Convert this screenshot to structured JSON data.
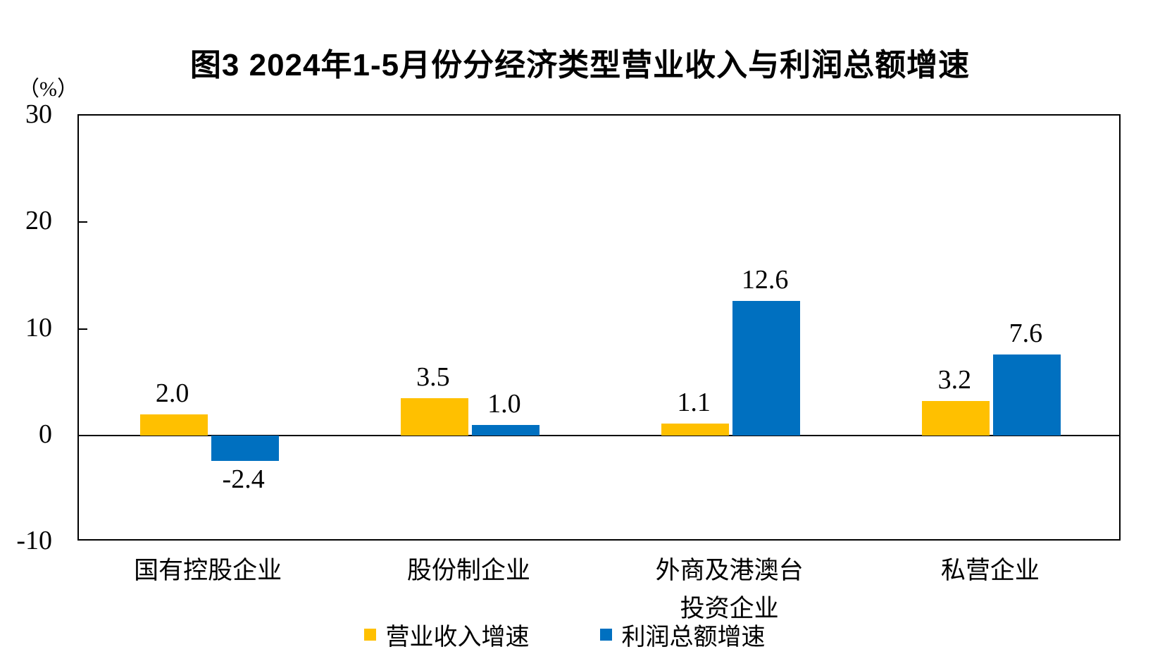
{
  "chart": {
    "title": "图3 2024年1-5月份分经济类型营业收入与利润总额增速",
    "unit_label": "（%）"
  },
  "chart_data": {
    "type": "bar",
    "title": "图3 2024年1-5月份分经济类型营业收入与利润总额增速",
    "unit": "%",
    "categories": [
      "国有控股企业",
      "股份制企业",
      "外商及港澳台\n投资企业",
      "私营企业"
    ],
    "series": [
      {
        "name": "营业收入增速",
        "color": "#FFC000",
        "values": [
          2.0,
          3.5,
          1.1,
          3.2
        ]
      },
      {
        "name": "利润总额增速",
        "color": "#0070C0",
        "values": [
          -2.4,
          1.0,
          12.6,
          7.6
        ]
      }
    ],
    "ylim": [
      -10,
      30
    ],
    "yticks": [
      30,
      20,
      10,
      0,
      -10
    ],
    "grid": false,
    "data_labels": true,
    "legend_position": "bottom"
  }
}
